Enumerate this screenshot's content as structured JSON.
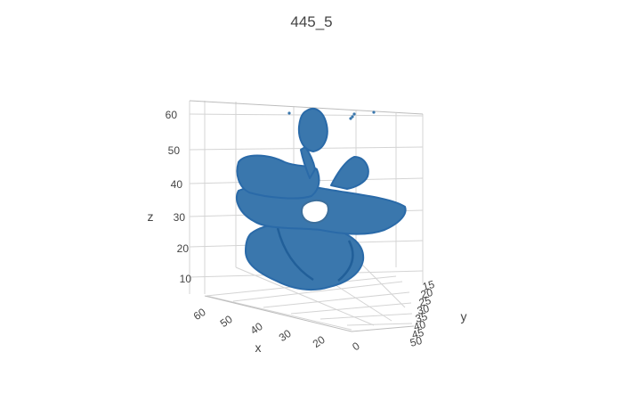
{
  "chart_data": {
    "type": "scatter3d",
    "title": "445_5",
    "axes": {
      "x": {
        "label": "x",
        "ticks": [
          "60",
          "50",
          "40",
          "30",
          "20",
          "0"
        ]
      },
      "y": {
        "label": "y",
        "ticks": [
          "15",
          "20",
          "25",
          "30",
          "35",
          "40",
          "45",
          "50"
        ]
      },
      "z": {
        "label": "z",
        "ticks": [
          "60",
          "50",
          "40",
          "30",
          "20",
          "10"
        ]
      }
    },
    "marker_color": "#3a77ad",
    "grid": true,
    "legend": "none"
  }
}
